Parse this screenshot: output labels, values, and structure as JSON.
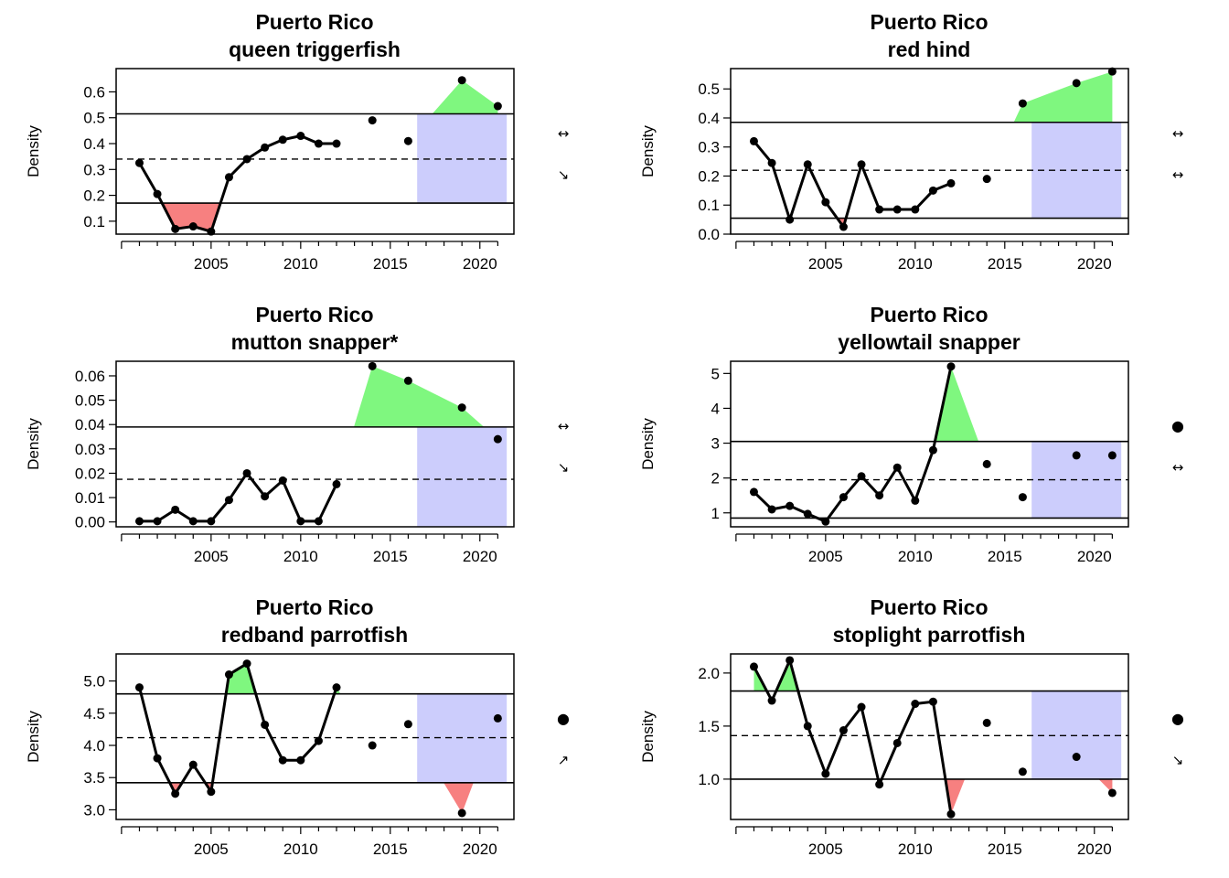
{
  "chart_data": [
    {
      "type": "line",
      "title": "Puerto Rico",
      "subtitle": "queen triggerfish",
      "ylabel": "Density",
      "xlim": [
        1999.7,
        2021.9
      ],
      "ylim": [
        0.05,
        0.69
      ],
      "xticks": [
        2005,
        2010,
        2015,
        2020
      ],
      "yticks": [
        0.1,
        0.2,
        0.3,
        0.4,
        0.5,
        0.6
      ],
      "ytick_labels": [
        "0.1",
        "0.2",
        "0.3",
        "0.4",
        "0.5",
        "0.6"
      ],
      "mean": 0.34,
      "upper": 0.515,
      "lower": 0.17,
      "recent_window": [
        2016.5,
        2021.5
      ],
      "x": [
        2001,
        2002,
        2003,
        2004,
        2005,
        2006,
        2007,
        2008,
        2009,
        2010,
        2011,
        2012,
        2014,
        2016,
        2019,
        2021
      ],
      "y": [
        0.325,
        0.205,
        0.07,
        0.08,
        0.06,
        0.27,
        0.34,
        0.385,
        0.415,
        0.43,
        0.4,
        0.4,
        0.49,
        0.41,
        0.645,
        0.545
      ],
      "line_segments": [
        [
          0,
          11
        ]
      ],
      "trend_symbols": [
        "↔",
        "↘"
      ],
      "shade_colors": {
        "above": "#7ff77f",
        "below": "#f78080",
        "recent": "#cccdfc"
      }
    },
    {
      "type": "line",
      "title": "Puerto Rico",
      "subtitle": "red hind",
      "ylabel": "Density",
      "xlim": [
        1999.7,
        2021.9
      ],
      "ylim": [
        0.0,
        0.57
      ],
      "xticks": [
        2005,
        2010,
        2015,
        2020
      ],
      "yticks": [
        0.0,
        0.1,
        0.2,
        0.3,
        0.4,
        0.5
      ],
      "ytick_labels": [
        "0.0",
        "0.1",
        "0.2",
        "0.3",
        "0.4",
        "0.5"
      ],
      "mean": 0.22,
      "upper": 0.385,
      "lower": 0.055,
      "recent_window": [
        2016.5,
        2021.5
      ],
      "x": [
        2001,
        2002,
        2003,
        2004,
        2005,
        2006,
        2007,
        2008,
        2009,
        2010,
        2011,
        2012,
        2014,
        2016,
        2019,
        2021
      ],
      "y": [
        0.32,
        0.245,
        0.05,
        0.24,
        0.11,
        0.025,
        0.24,
        0.085,
        0.085,
        0.085,
        0.15,
        0.175,
        0.19,
        0.45,
        0.52,
        0.56
      ],
      "line_segments": [
        [
          0,
          11
        ]
      ],
      "trend_symbols": [
        "↔",
        "↔"
      ],
      "shade_colors": {
        "above": "#7ff77f",
        "below": "#f78080",
        "recent": "#cccdfc"
      }
    },
    {
      "type": "line",
      "title": "Puerto Rico",
      "subtitle": "mutton snapper*",
      "ylabel": "Density",
      "xlim": [
        1999.7,
        2021.9
      ],
      "ylim": [
        -0.002,
        0.066
      ],
      "xticks": [
        2005,
        2010,
        2015,
        2020
      ],
      "yticks": [
        0.0,
        0.01,
        0.02,
        0.03,
        0.04,
        0.05,
        0.06
      ],
      "ytick_labels": [
        "0.00",
        "0.01",
        "0.02",
        "0.03",
        "0.04",
        "0.05",
        "0.06"
      ],
      "mean": 0.0175,
      "upper": 0.039,
      "lower": null,
      "recent_window": [
        2016.5,
        2021.5
      ],
      "x": [
        2001,
        2002,
        2003,
        2004,
        2005,
        2006,
        2007,
        2008,
        2009,
        2010,
        2011,
        2012,
        2014,
        2016,
        2019,
        2021
      ],
      "y": [
        0.0003,
        0.0003,
        0.005,
        0.0003,
        0.0003,
        0.009,
        0.02,
        0.0105,
        0.017,
        0.0003,
        0.0003,
        0.0155,
        0.064,
        0.058,
        0.047,
        0.034
      ],
      "line_segments": [
        [
          0,
          11
        ]
      ],
      "trend_symbols": [
        "↔",
        "↘"
      ],
      "shade_colors": {
        "above": "#7ff77f",
        "below": "#f78080",
        "recent": "#cccdfc"
      }
    },
    {
      "type": "line",
      "title": "Puerto Rico",
      "subtitle": "yellowtail snapper",
      "ylabel": "Density",
      "xlim": [
        1999.7,
        2021.9
      ],
      "ylim": [
        0.6,
        5.35
      ],
      "xticks": [
        2005,
        2010,
        2015,
        2020
      ],
      "yticks": [
        1,
        2,
        3,
        4,
        5
      ],
      "ytick_labels": [
        "1",
        "2",
        "3",
        "4",
        "5"
      ],
      "mean": 1.95,
      "upper": 3.05,
      "lower": 0.85,
      "recent_window": [
        2016.5,
        2021.5
      ],
      "x": [
        2001,
        2002,
        2003,
        2004,
        2005,
        2006,
        2007,
        2008,
        2009,
        2010,
        2011,
        2012,
        2014,
        2016,
        2019,
        2021
      ],
      "y": [
        1.6,
        1.1,
        1.2,
        0.97,
        0.75,
        1.45,
        2.05,
        1.5,
        2.3,
        1.35,
        2.8,
        5.2,
        2.4,
        1.45,
        2.65,
        2.65
      ],
      "line_segments": [
        [
          0,
          11
        ]
      ],
      "trend_symbols": [
        "●",
        "↔"
      ],
      "shade_colors": {
        "above": "#7ff77f",
        "below": "#f78080",
        "recent": "#cccdfc"
      }
    },
    {
      "type": "line",
      "title": "Puerto Rico",
      "subtitle": "redband parrotfish",
      "ylabel": "Density",
      "xlim": [
        1999.7,
        2021.9
      ],
      "ylim": [
        2.85,
        5.42
      ],
      "xticks": [
        2005,
        2010,
        2015,
        2020
      ],
      "yticks": [
        3.0,
        3.5,
        4.0,
        4.5,
        5.0
      ],
      "ytick_labels": [
        "3.0",
        "3.5",
        "4.0",
        "4.5",
        "5.0"
      ],
      "mean": 4.12,
      "upper": 4.8,
      "lower": 3.42,
      "recent_window": [
        2016.5,
        2021.5
      ],
      "x": [
        2001,
        2002,
        2003,
        2004,
        2005,
        2006,
        2007,
        2008,
        2009,
        2010,
        2011,
        2012,
        2014,
        2016,
        2019,
        2021
      ],
      "y": [
        4.9,
        3.8,
        3.25,
        3.7,
        3.28,
        5.1,
        5.27,
        4.32,
        3.77,
        3.77,
        4.07,
        4.9,
        4.0,
        4.33,
        2.95,
        4.42
      ],
      "line_segments": [
        [
          0,
          11
        ]
      ],
      "trend_symbols": [
        "●",
        "↗"
      ],
      "shade_colors": {
        "above": "#7ff77f",
        "below": "#f78080",
        "recent": "#cccdfc"
      }
    },
    {
      "type": "line",
      "title": "Puerto Rico",
      "subtitle": "stoplight parrotfish",
      "ylabel": "Density",
      "xlim": [
        1999.7,
        2021.9
      ],
      "ylim": [
        0.62,
        2.18
      ],
      "xticks": [
        2005,
        2010,
        2015,
        2020
      ],
      "yticks": [
        1.0,
        1.5,
        2.0
      ],
      "ytick_labels": [
        "1.0",
        "1.5",
        "2.0"
      ],
      "mean": 1.41,
      "upper": 1.83,
      "lower": 1.0,
      "recent_window": [
        2016.5,
        2021.5
      ],
      "x": [
        2001,
        2002,
        2003,
        2004,
        2005,
        2006,
        2007,
        2008,
        2009,
        2010,
        2011,
        2012,
        2014,
        2016,
        2019,
        2021
      ],
      "y": [
        2.06,
        1.74,
        2.12,
        1.5,
        1.05,
        1.46,
        1.68,
        0.95,
        1.34,
        1.71,
        1.73,
        0.67,
        1.53,
        1.07,
        1.21,
        0.87
      ],
      "line_segments": [
        [
          0,
          11
        ]
      ],
      "trend_symbols": [
        "●",
        "↘"
      ],
      "shade_colors": {
        "above": "#7ff77f",
        "below": "#f78080",
        "recent": "#cccdfc"
      }
    }
  ]
}
